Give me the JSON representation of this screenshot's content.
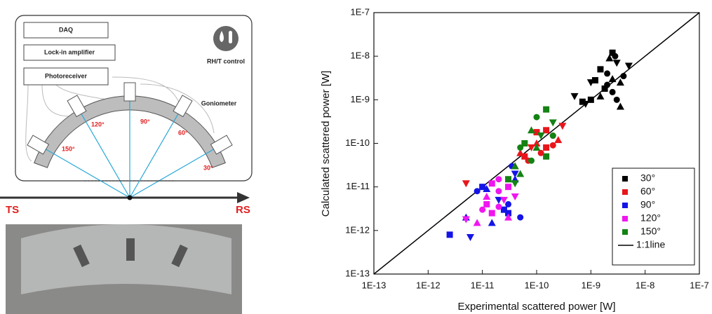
{
  "diagram": {
    "instruments": [
      "DAQ",
      "Lock-in amplifier",
      "Photoreceiver"
    ],
    "rht_label": "RH/T control",
    "goniometer_label": "Goniometer",
    "angles": [
      "150°",
      "120°",
      "90°",
      "60°",
      "30°"
    ],
    "ts_label": "TS",
    "rs_label": "RS"
  },
  "chart_data": {
    "type": "scatter",
    "x_label": "Experimental scattered power [W]",
    "y_label": "Calculated scattered power [W]",
    "log_x": true,
    "log_y": true,
    "legend": "lower right",
    "xlim": [
      1e-13,
      1e-07
    ],
    "ylim": [
      1e-13,
      1e-07
    ],
    "xticks": [
      {
        "value": 1e-13,
        "label": "1E-13"
      },
      {
        "value": 1e-12,
        "label": "1E-12"
      },
      {
        "value": 1e-11,
        "label": "1E-11"
      },
      {
        "value": 1e-10,
        "label": "1E-10"
      },
      {
        "value": 1e-09,
        "label": "1E-9"
      },
      {
        "value": 1e-08,
        "label": "1E-8"
      },
      {
        "value": 1e-07,
        "label": "1E-7"
      }
    ],
    "yticks": [
      {
        "value": 1e-13,
        "label": "1E-13"
      },
      {
        "value": 1e-12,
        "label": "1E-12"
      },
      {
        "value": 1e-11,
        "label": "1E-11"
      },
      {
        "value": 1e-10,
        "label": "1E-10"
      },
      {
        "value": 1e-09,
        "label": "1E-9"
      },
      {
        "value": 1e-08,
        "label": "1E-8"
      },
      {
        "value": 1e-07,
        "label": "1E-7"
      }
    ],
    "series": [
      {
        "name": "30°",
        "color": "#000000",
        "x": [
          2.5e-09,
          2.8e-09,
          2.2e-09,
          3e-09,
          1.5e-09,
          2e-09,
          2.5e-09,
          1e-09,
          1.2e-09,
          4e-09,
          3.5e-09,
          5e-09,
          1.8e-09,
          2.5e-09,
          1.5e-09,
          8e-10,
          1e-09,
          3e-09,
          3.5e-09,
          5e-10,
          7e-10,
          2e-09
        ],
        "values": [
          1.2e-08,
          1e-08,
          9e-09,
          7e-09,
          5e-09,
          4e-09,
          3e-09,
          2.5e-09,
          2.8e-09,
          3.5e-09,
          2.5e-09,
          6e-09,
          1.8e-09,
          1.5e-09,
          1.2e-09,
          8e-10,
          1e-09,
          1e-09,
          7e-10,
          1.2e-09,
          9e-10,
          2.2e-09
        ]
      },
      {
        "name": "60°",
        "color": "#e8161b",
        "x": [
          1.5e-10,
          2e-10,
          1e-10,
          8e-11,
          6e-11,
          1.2e-10,
          2.5e-10,
          3e-10,
          1e-10,
          7e-11,
          4e-11,
          5e-12,
          1.5e-10,
          2e-10,
          5e-11
        ],
        "values": [
          2e-10,
          1.5e-10,
          1e-10,
          8e-11,
          5e-11,
          6e-11,
          1.2e-10,
          2.5e-10,
          1.8e-10,
          4e-11,
          3e-11,
          1.2e-11,
          8e-11,
          9e-11,
          6e-11
        ]
      },
      {
        "name": "90°",
        "color": "#1414e6",
        "x": [
          1e-11,
          8e-12,
          1.2e-11,
          2e-11,
          2.5e-11,
          3e-11,
          1.5e-11,
          4e-11,
          3e-11,
          3.5e-11,
          5e-12,
          6e-12,
          2.5e-12,
          5e-11,
          4e-11
        ],
        "values": [
          1e-11,
          8e-12,
          9e-12,
          5e-12,
          3e-12,
          4e-12,
          1.5e-12,
          2e-11,
          2.5e-12,
          3e-11,
          2e-12,
          7e-13,
          8e-13,
          2e-12,
          1.5e-11
        ]
      },
      {
        "name": "120°",
        "color": "#f016f0",
        "x": [
          1.5e-11,
          2e-11,
          1.2e-11,
          2.5e-11,
          3e-11,
          1e-11,
          8e-12,
          5e-12,
          1.5e-11,
          2e-11,
          3e-11,
          4e-11,
          1.2e-11,
          2e-11
        ],
        "values": [
          1.2e-11,
          8e-12,
          6e-12,
          5e-12,
          1e-11,
          3e-12,
          1.5e-12,
          1.8e-12,
          2.5e-12,
          1.5e-11,
          2e-12,
          6e-12,
          4e-12,
          3.5e-12
        ]
      },
      {
        "name": "150°",
        "color": "#148214",
        "x": [
          1.5e-10,
          1e-10,
          8e-11,
          1.2e-10,
          6e-11,
          5e-11,
          1e-10,
          2e-10,
          1.5e-10,
          8e-11,
          5e-11,
          4e-11,
          3e-11,
          2e-10,
          4e-11
        ],
        "values": [
          6e-10,
          4e-10,
          2e-10,
          1.5e-10,
          1e-10,
          8e-11,
          8e-11,
          3e-10,
          5e-11,
          4e-11,
          2e-11,
          1.2e-11,
          1.5e-11,
          1.5e-10,
          3e-11
        ]
      }
    ],
    "reference_line": {
      "name": "1:1line",
      "color": "#000000",
      "x": [
        1e-13,
        1e-07
      ],
      "values": [
        1e-13,
        1e-07
      ]
    }
  }
}
